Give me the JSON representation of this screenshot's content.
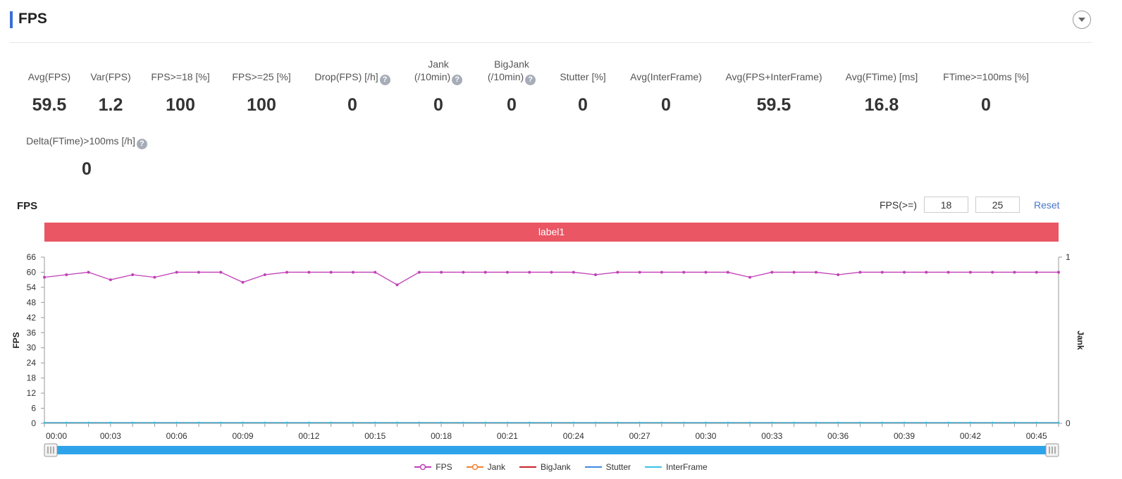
{
  "header": {
    "title": "FPS"
  },
  "metrics_row1": [
    {
      "label_lines": [
        "Avg(FPS)"
      ],
      "value": "59.5",
      "help": false
    },
    {
      "label_lines": [
        "Var(FPS)"
      ],
      "value": "1.2",
      "help": false
    },
    {
      "label_lines": [
        "FPS>=18 [%]"
      ],
      "value": "100",
      "help": false
    },
    {
      "label_lines": [
        "FPS>=25 [%]"
      ],
      "value": "100",
      "help": false
    },
    {
      "label_lines": [
        "Drop(FPS) [/h]"
      ],
      "value": "0",
      "help": true
    },
    {
      "label_lines": [
        "Jank",
        "(/10min)"
      ],
      "value": "0",
      "help": true
    },
    {
      "label_lines": [
        "BigJank",
        "(/10min)"
      ],
      "value": "0",
      "help": true
    },
    {
      "label_lines": [
        "Stutter [%]"
      ],
      "value": "0",
      "help": false
    },
    {
      "label_lines": [
        "Avg(InterFrame)"
      ],
      "value": "0",
      "help": false
    },
    {
      "label_lines": [
        "Avg(FPS+InterFrame)"
      ],
      "value": "59.5",
      "help": false
    },
    {
      "label_lines": [
        "Avg(FTime) [ms]"
      ],
      "value": "16.8",
      "help": false
    },
    {
      "label_lines": [
        "FTime>=100ms [%]"
      ],
      "value": "0",
      "help": false
    }
  ],
  "metrics_row2": [
    {
      "label_lines": [
        "Delta(FTime)>100ms [/h]"
      ],
      "value": "0",
      "help": true
    }
  ],
  "help_glyph": "?",
  "chart_section": {
    "title": "FPS",
    "threshold_label": "FPS(>=)",
    "threshold_low": "18",
    "threshold_high": "25",
    "reset_label": "Reset",
    "label_bar": "label1",
    "label_bar_color": "#ea5664"
  },
  "chart_data": {
    "type": "line",
    "ylabel": "FPS",
    "y2label": "Jank",
    "ylim": [
      0,
      66
    ],
    "yticks": [
      0,
      6,
      12,
      18,
      24,
      30,
      36,
      42,
      48,
      54,
      60,
      66
    ],
    "y2lim": [
      0,
      1
    ],
    "y2ticks": [
      0,
      1
    ],
    "x_tick_labels": [
      "00:00",
      "00:03",
      "00:06",
      "00:09",
      "00:12",
      "00:15",
      "00:18",
      "00:21",
      "00:24",
      "00:27",
      "00:30",
      "00:33",
      "00:36",
      "00:39",
      "00:42",
      "00:45"
    ],
    "x_seconds": [
      0,
      1,
      2,
      3,
      4,
      5,
      6,
      7,
      8,
      9,
      10,
      11,
      12,
      13,
      14,
      15,
      16,
      17,
      18,
      19,
      20,
      21,
      22,
      23,
      24,
      25,
      26,
      27,
      28,
      29,
      30,
      31,
      32,
      33,
      34,
      35,
      36,
      37,
      38,
      39,
      40,
      41,
      42,
      43,
      44,
      45,
      46
    ],
    "xlim": [
      0,
      46
    ],
    "series": [
      {
        "name": "FPS",
        "color": "#c23fb8",
        "axis": "left",
        "values": [
          58,
          59,
          60,
          57,
          59,
          58,
          60,
          60,
          60,
          56,
          59,
          60,
          60,
          60,
          60,
          60,
          55,
          60,
          60,
          60,
          60,
          60,
          60,
          60,
          60,
          59,
          60,
          60,
          60,
          60,
          60,
          60,
          58,
          60,
          60,
          60,
          59,
          60,
          60,
          60,
          60,
          60,
          60,
          60,
          60,
          60,
          60
        ]
      },
      {
        "name": "Jank",
        "color": "#f08232",
        "axis": "right",
        "values": "all 0"
      },
      {
        "name": "BigJank",
        "color": "#c8252d",
        "axis": "right",
        "values": "all 0"
      },
      {
        "name": "Stutter",
        "color": "#3d8be0",
        "axis": "left",
        "values": "all 0"
      },
      {
        "name": "InterFrame",
        "color": "#39c2e6",
        "axis": "left",
        "values": "all 0"
      }
    ],
    "zoom_range": [
      0,
      1
    ]
  }
}
